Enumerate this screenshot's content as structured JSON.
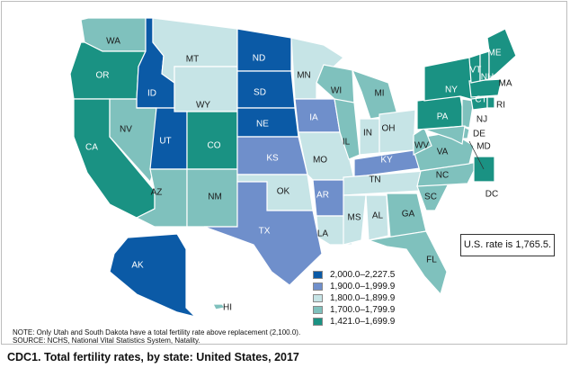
{
  "map": {
    "us_rate_label": "U.S. rate is 1,765.5.",
    "note_line1": "NOTE: Only Utah and South Dakota have a total fertility rate above replacement (2,100.0).",
    "note_line2": "SOURCE: NCHS, National Vital Statistics System, Natality.",
    "legend": [
      {
        "label": "2,000.0–2,227.5",
        "color": "#0b5aa6"
      },
      {
        "label": "1,900.0–1,999.9",
        "color": "#6f8fcb"
      },
      {
        "label": "1,800.0–1,899.9",
        "color": "#c6e4e6"
      },
      {
        "label": "1,700.0–1,799.9",
        "color": "#7fc1bd"
      },
      {
        "label": "1,421.0–1,699.9",
        "color": "#1a9283"
      }
    ],
    "states": [
      {
        "abbr": "WA",
        "bin": 3
      },
      {
        "abbr": "OR",
        "bin": 4
      },
      {
        "abbr": "CA",
        "bin": 4
      },
      {
        "abbr": "ID",
        "bin": 0
      },
      {
        "abbr": "NV",
        "bin": 3
      },
      {
        "abbr": "MT",
        "bin": 2
      },
      {
        "abbr": "WY",
        "bin": 2
      },
      {
        "abbr": "UT",
        "bin": 0
      },
      {
        "abbr": "AZ",
        "bin": 3
      },
      {
        "abbr": "CO",
        "bin": 4
      },
      {
        "abbr": "NM",
        "bin": 3
      },
      {
        "abbr": "ND",
        "bin": 0
      },
      {
        "abbr": "SD",
        "bin": 0
      },
      {
        "abbr": "NE",
        "bin": 0
      },
      {
        "abbr": "KS",
        "bin": 1
      },
      {
        "abbr": "OK",
        "bin": 2
      },
      {
        "abbr": "TX",
        "bin": 1
      },
      {
        "abbr": "MN",
        "bin": 2
      },
      {
        "abbr": "IA",
        "bin": 1
      },
      {
        "abbr": "MO",
        "bin": 2
      },
      {
        "abbr": "AR",
        "bin": 1
      },
      {
        "abbr": "LA",
        "bin": 2
      },
      {
        "abbr": "WI",
        "bin": 3
      },
      {
        "abbr": "IL",
        "bin": 3
      },
      {
        "abbr": "MI",
        "bin": 3
      },
      {
        "abbr": "IN",
        "bin": 2
      },
      {
        "abbr": "OH",
        "bin": 2
      },
      {
        "abbr": "KY",
        "bin": 1
      },
      {
        "abbr": "TN",
        "bin": 2
      },
      {
        "abbr": "MS",
        "bin": 2
      },
      {
        "abbr": "AL",
        "bin": 2
      },
      {
        "abbr": "GA",
        "bin": 3
      },
      {
        "abbr": "FL",
        "bin": 3
      },
      {
        "abbr": "SC",
        "bin": 3
      },
      {
        "abbr": "NC",
        "bin": 3
      },
      {
        "abbr": "VA",
        "bin": 3
      },
      {
        "abbr": "WV",
        "bin": 3
      },
      {
        "abbr": "PA",
        "bin": 4
      },
      {
        "abbr": "NY",
        "bin": 4
      },
      {
        "abbr": "NJ",
        "bin": 3
      },
      {
        "abbr": "DE",
        "bin": 3
      },
      {
        "abbr": "MD",
        "bin": 3
      },
      {
        "abbr": "DC",
        "bin": 4
      },
      {
        "abbr": "CT",
        "bin": 4
      },
      {
        "abbr": "RI",
        "bin": 4
      },
      {
        "abbr": "MA",
        "bin": 4
      },
      {
        "abbr": "VT",
        "bin": 4
      },
      {
        "abbr": "NH",
        "bin": 4
      },
      {
        "abbr": "ME",
        "bin": 4
      },
      {
        "abbr": "AK",
        "bin": 0
      },
      {
        "abbr": "HI",
        "bin": 3
      }
    ]
  },
  "caption": {
    "prefix": "CDC1.",
    "title": "Total fertility rates, by state: United States, 2017"
  }
}
